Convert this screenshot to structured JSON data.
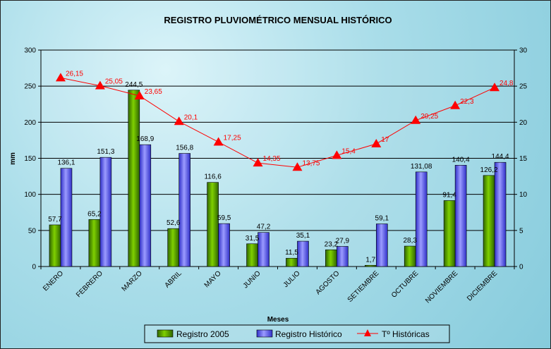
{
  "chart_data": {
    "type": "bar",
    "title": "REGISTRO PLUVIOMÉTRICO MENSUAL HISTÓRICO",
    "xlabel": "Meses",
    "ylabel": "mm",
    "ylim": [
      0,
      300
    ],
    "y_ticks": [
      0,
      50,
      100,
      150,
      200,
      250,
      300
    ],
    "y2lim": [
      0,
      30
    ],
    "y2_ticks": [
      0,
      5,
      10,
      15,
      20,
      25,
      30
    ],
    "categories": [
      "ENERO",
      "FEBRERO",
      "MARZO",
      "ABRIL",
      "MAYO",
      "JUNIO",
      "JULIO",
      "AGOSTO",
      "SETIEMBRE",
      "OCTUBRE",
      "NOVIEMBRE",
      "DICIEMBRE"
    ],
    "series": [
      {
        "name": "Registro 2005",
        "type": "bar",
        "color": "#4e8f00",
        "values": [
          57.7,
          65.2,
          244.5,
          52.6,
          116.6,
          31.5,
          11.5,
          23.2,
          1.7,
          28.3,
          91.4,
          126.2
        ],
        "labels": [
          "57,7",
          "65,2",
          "244,5",
          "52,6",
          "116,6",
          "31,5",
          "11,5",
          "23,2",
          "1,7",
          "28,3",
          "91,4",
          "126,2"
        ]
      },
      {
        "name": "Registro  Histórico",
        "type": "bar",
        "color": "#5b5bff",
        "values": [
          136.1,
          151.3,
          168.9,
          156.8,
          59.5,
          47.2,
          35.1,
          27.9,
          59.1,
          131.08,
          140.4,
          144.4
        ],
        "labels": [
          "136,1",
          "151,3",
          "168,9",
          "156,8",
          "59,5",
          "47,2",
          "35,1",
          "27,9",
          "59,1",
          "131,08",
          "140,4",
          "144,4"
        ]
      },
      {
        "name": "Tº Históricas",
        "type": "line",
        "axis": "secondary",
        "color": "#ff0000",
        "values": [
          26.15,
          25.05,
          23.65,
          20.1,
          17.25,
          14.35,
          13.75,
          15.4,
          17,
          20.25,
          22.3,
          24.8
        ],
        "labels": [
          "26,15",
          "25,05",
          "23,65",
          "20,1",
          "17,25",
          "14,35",
          "13,75",
          "15,4",
          "17",
          "20,25",
          "22,3",
          "24,8"
        ]
      }
    ],
    "grid": true,
    "legend_position": "bottom"
  }
}
